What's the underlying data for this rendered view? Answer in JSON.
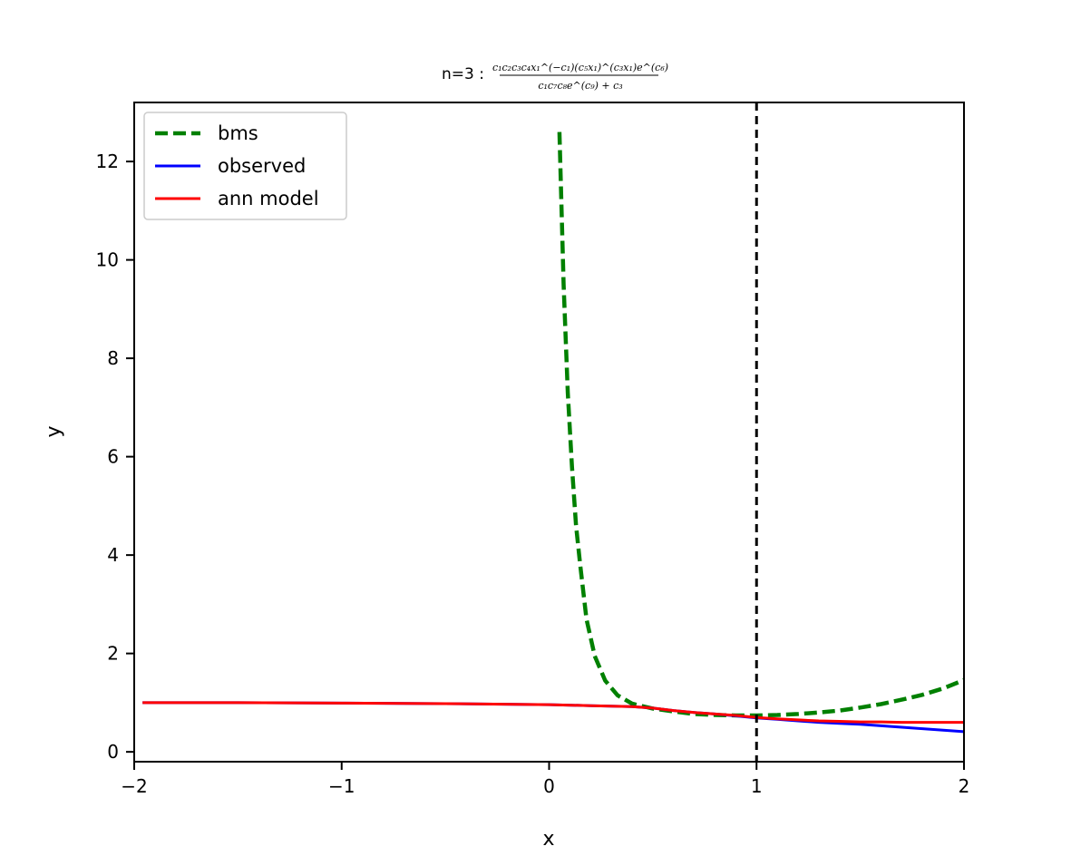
{
  "chart_data": {
    "type": "line",
    "title": {
      "prefix": "n=3 : ",
      "numerator": "c₁c₂c₃c₄x₁^(−c₁)(c₅x₁)^(c₃x₁)e^(c₆)",
      "denominator": "c₁c₇c₈e^(c₉) + c₃"
    },
    "xlabel": "x",
    "ylabel": "y",
    "xlim": [
      -2,
      2
    ],
    "ylim": [
      -0.2,
      13.2
    ],
    "xticks": [
      -2,
      -1,
      0,
      1,
      2
    ],
    "xtick_labels": [
      "−2",
      "−1",
      "0",
      "1",
      "2"
    ],
    "yticks": [
      0,
      2,
      4,
      6,
      8,
      10,
      12
    ],
    "ytick_labels": [
      "0",
      "2",
      "4",
      "6",
      "8",
      "10",
      "12"
    ],
    "grid": false,
    "legend": "top-left",
    "vline": {
      "x": 1,
      "style": "dashed",
      "color": "#000000"
    },
    "series": [
      {
        "name": "bms",
        "color": "#008000",
        "style": "dashed",
        "x": [
          0.05,
          0.07,
          0.09,
          0.11,
          0.13,
          0.15,
          0.18,
          0.22,
          0.27,
          0.33,
          0.4,
          0.5,
          0.6,
          0.7,
          0.8,
          0.9,
          1.0,
          1.1,
          1.2,
          1.3,
          1.4,
          1.5,
          1.6,
          1.7,
          1.8,
          1.9,
          2.0
        ],
        "y": [
          12.6,
          9.5,
          7.3,
          5.8,
          4.6,
          3.8,
          2.7,
          1.95,
          1.45,
          1.15,
          0.98,
          0.88,
          0.82,
          0.77,
          0.75,
          0.74,
          0.74,
          0.75,
          0.77,
          0.8,
          0.84,
          0.9,
          0.97,
          1.06,
          1.16,
          1.29,
          1.46
        ]
      },
      {
        "name": "observed",
        "color": "#0000ff",
        "style": "solid",
        "x": [
          -1.96,
          -1.5,
          -1.0,
          -0.5,
          0.0,
          0.2,
          0.4,
          0.5,
          0.6,
          0.7,
          0.8,
          0.9,
          1.0,
          1.1,
          1.2,
          1.3,
          1.4,
          1.5,
          1.6,
          1.7,
          1.8,
          1.9,
          2.0
        ],
        "y": [
          1.0,
          1.0,
          0.99,
          0.98,
          0.96,
          0.94,
          0.92,
          0.89,
          0.84,
          0.8,
          0.77,
          0.73,
          0.69,
          0.66,
          0.63,
          0.6,
          0.58,
          0.56,
          0.53,
          0.5,
          0.47,
          0.44,
          0.41
        ]
      },
      {
        "name": "ann model",
        "color": "#ff0000",
        "style": "solid",
        "x": [
          -1.96,
          -1.5,
          -1.0,
          -0.5,
          0.0,
          0.2,
          0.4,
          0.5,
          0.6,
          0.7,
          0.8,
          0.9,
          1.0,
          1.1,
          1.2,
          1.3,
          1.4,
          1.5,
          1.6,
          1.7,
          1.8,
          1.9,
          2.0
        ],
        "y": [
          1.0,
          1.0,
          0.99,
          0.98,
          0.96,
          0.94,
          0.92,
          0.89,
          0.84,
          0.8,
          0.77,
          0.74,
          0.7,
          0.67,
          0.65,
          0.63,
          0.62,
          0.61,
          0.61,
          0.6,
          0.6,
          0.6,
          0.6
        ]
      }
    ]
  }
}
